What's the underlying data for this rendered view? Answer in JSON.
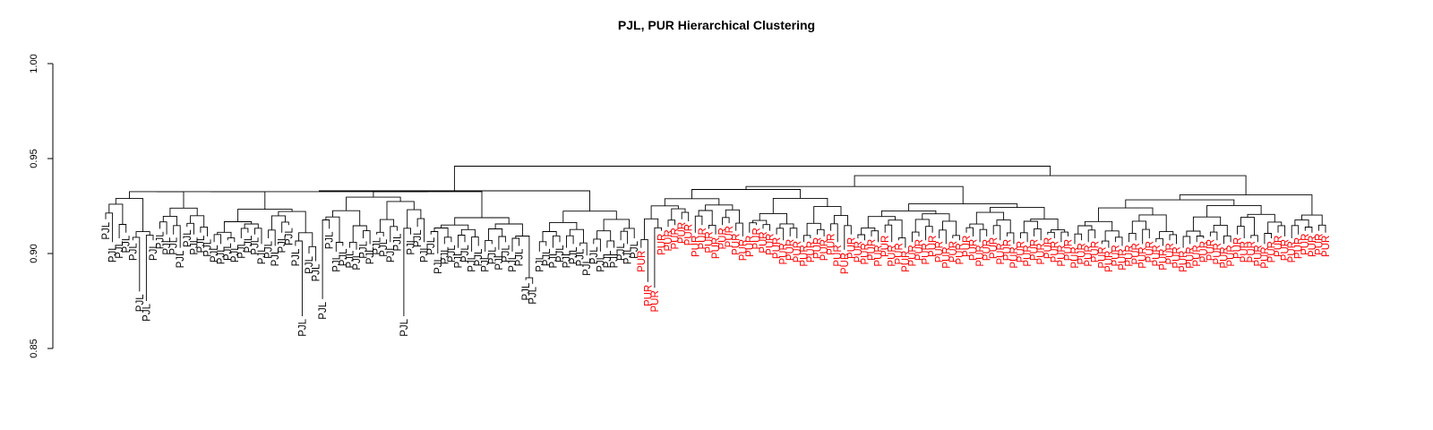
{
  "chart_data": {
    "type": "dendrogram",
    "title": "PJL, PUR Hierarchical Clustering",
    "xlabel": "",
    "ylabel": "",
    "ylim": [
      0.85,
      1.0
    ],
    "y_ticks": [
      "0.85",
      "0.90",
      "0.95",
      "1.00"
    ],
    "colors": {
      "PJL": "#000000",
      "PUR": "#ff0000"
    },
    "leaves": {
      "PJL": [
        0.918,
        0.906,
        0.908,
        0.911,
        0.907,
        0.88,
        0.875,
        0.907,
        0.913,
        0.91,
        0.91,
        0.903,
        0.914,
        0.91,
        0.911,
        0.909,
        0.906,
        0.905,
        0.907,
        0.906,
        0.908,
        0.911,
        0.91,
        0.905,
        0.908,
        0.904,
        0.911,
        0.915,
        0.904,
        0.867,
        0.9,
        0.896,
        0.876,
        0.913,
        0.901,
        0.904,
        0.903,
        0.902,
        0.908,
        0.905,
        0.91,
        0.909,
        0.906,
        0.912,
        0.867,
        0.91,
        0.914,
        0.906,
        0.91,
        0.9,
        0.905,
        0.906,
        0.903,
        0.906,
        0.901,
        0.904,
        0.901,
        0.905,
        0.902,
        0.906,
        0.901,
        0.904,
        0.886,
        0.884,
        0.901,
        0.904,
        0.903,
        0.906,
        0.903,
        0.905,
        0.904,
        0.899,
        0.905,
        0.901,
        0.903,
        0.903,
        0.907,
        0.905,
        0.908
      ],
      "PUR": [
        0.903,
        0.885,
        0.882,
        0.912,
        0.914,
        0.915,
        0.918,
        0.917,
        0.911,
        0.915,
        0.913,
        0.91,
        0.915,
        0.916,
        0.912,
        0.909,
        0.911,
        0.915,
        0.913,
        0.912,
        0.91,
        0.907,
        0.909,
        0.908,
        0.906,
        0.908,
        0.91,
        0.909,
        0.912,
        0.906,
        0.902,
        0.91,
        0.908,
        0.907,
        0.909,
        0.906,
        0.911,
        0.906,
        0.907,
        0.903,
        0.906,
        0.909,
        0.907,
        0.911,
        0.908,
        0.905,
        0.908,
        0.907,
        0.911,
        0.909,
        0.906,
        0.909,
        0.91,
        0.907,
        0.909,
        0.905,
        0.908,
        0.906,
        0.909,
        0.907,
        0.91,
        0.908,
        0.906,
        0.909,
        0.905,
        0.907,
        0.906,
        0.908,
        0.905,
        0.903,
        0.906,
        0.904,
        0.906,
        0.907,
        0.905,
        0.908,
        0.906,
        0.904,
        0.907,
        0.905,
        0.903,
        0.905,
        0.906,
        0.908,
        0.909,
        0.907,
        0.905,
        0.906,
        0.91,
        0.908,
        0.908,
        0.906,
        0.905,
        0.908,
        0.911,
        0.909,
        0.908,
        0.91,
        0.912,
        0.911,
        0.912,
        0.911
      ]
    },
    "root_height": 0.946,
    "cluster_heights": {
      "PJL": 0.933,
      "PUR": 0.941
    }
  }
}
